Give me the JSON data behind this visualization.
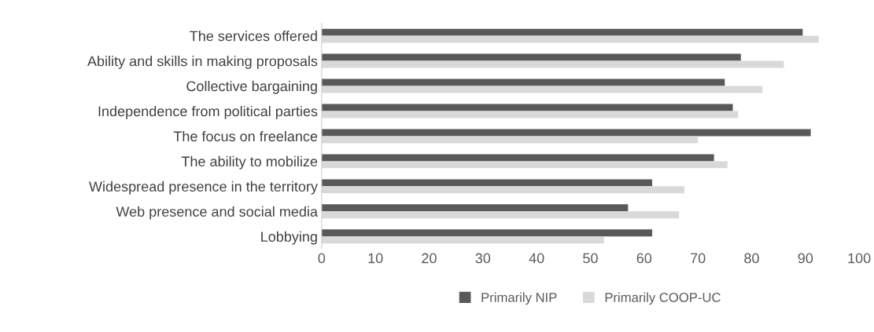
{
  "chart_data": {
    "type": "bar",
    "orientation": "horizontal",
    "categories": [
      "The services offered",
      "Ability and skills in making proposals",
      "Collective bargaining",
      "Independence from political parties",
      "The focus on freelance",
      "The ability to mobilize",
      "Widespread presence in the territory",
      "Web presence and social media",
      "Lobbying"
    ],
    "series": [
      {
        "name": "Primarily NIP",
        "color": "#595959",
        "values": [
          89.5,
          78,
          75,
          76.5,
          91,
          73,
          61.5,
          57,
          61.5
        ]
      },
      {
        "name": "Primarily COOP-UC",
        "color": "#d9d9d9",
        "values": [
          92.5,
          86,
          82,
          77.5,
          70,
          75.5,
          67.5,
          66.5,
          52.5
        ]
      }
    ],
    "xlim": [
      0,
      100
    ],
    "xticks": [
      0,
      10,
      20,
      30,
      40,
      50,
      60,
      70,
      80,
      90,
      100
    ],
    "grid": false,
    "legend": "bottom"
  }
}
